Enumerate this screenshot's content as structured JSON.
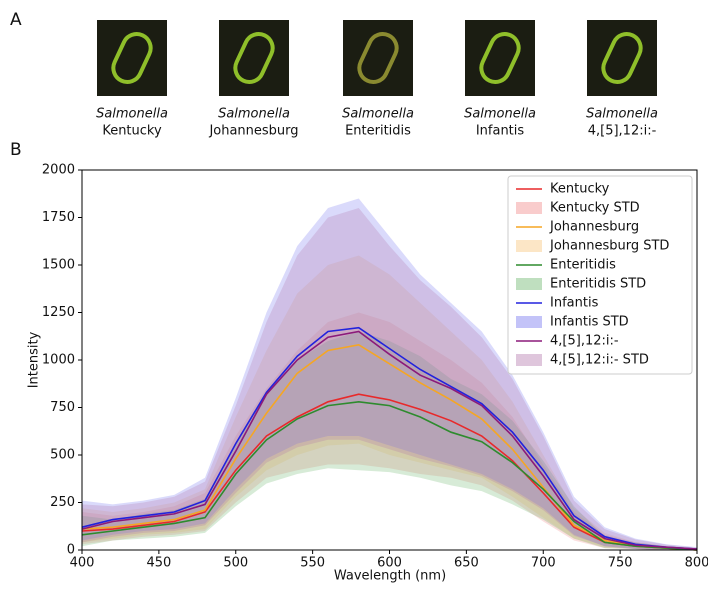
{
  "panel_a": {
    "label": "A",
    "images": [
      {
        "genus": "Salmonella",
        "serovar": "Kentucky"
      },
      {
        "genus": "Salmonella",
        "serovar": "Johannesburg"
      },
      {
        "genus": "Salmonella",
        "serovar": "Enteritidis"
      },
      {
        "genus": "Salmonella",
        "serovar": "Infantis"
      },
      {
        "genus": "Salmonella",
        "serovar": "4,[5],12:i:-"
      }
    ]
  },
  "chart_data": {
    "type": "line",
    "panel_label": "B",
    "xlabel": "Wavelength (nm)",
    "ylabel": "Intensity",
    "x": [
      400,
      420,
      440,
      460,
      480,
      500,
      520,
      540,
      560,
      580,
      600,
      620,
      640,
      660,
      680,
      700,
      720,
      740,
      760,
      780,
      800
    ],
    "xlim": [
      400,
      800
    ],
    "xticks": [
      400,
      450,
      500,
      550,
      600,
      650,
      700,
      750,
      800
    ],
    "ylim": [
      0,
      2000
    ],
    "yticks": [
      0,
      250,
      500,
      750,
      1000,
      1250,
      1500,
      1750,
      2000
    ],
    "grid": false,
    "legend": "upper right",
    "band_opacity": 0.25,
    "series": [
      {
        "name": "Kentucky",
        "color": "#e8292a",
        "values": [
          100,
          110,
          130,
          150,
          200,
          420,
          600,
          700,
          780,
          820,
          790,
          740,
          680,
          600,
          470,
          300,
          120,
          40,
          20,
          10,
          0
        ]
      },
      {
        "name": "Johannesburg",
        "color": "#f5a623",
        "values": [
          110,
          120,
          140,
          160,
          210,
          480,
          720,
          930,
          1050,
          1080,
          980,
          880,
          790,
          690,
          530,
          330,
          130,
          50,
          20,
          10,
          0
        ]
      },
      {
        "name": "Enteritidis",
        "color": "#2e8b2e",
        "values": [
          80,
          100,
          120,
          140,
          170,
          400,
          580,
          690,
          760,
          780,
          760,
          700,
          620,
          570,
          460,
          320,
          150,
          40,
          20,
          10,
          0
        ]
      },
      {
        "name": "Infantis",
        "color": "#2222dd",
        "values": [
          120,
          160,
          180,
          200,
          260,
          560,
          830,
          1020,
          1150,
          1170,
          1060,
          950,
          860,
          770,
          620,
          420,
          180,
          70,
          30,
          15,
          5
        ]
      },
      {
        "name": "4,[5],12:i:-",
        "color": "#8b1a7a",
        "values": [
          110,
          150,
          170,
          190,
          240,
          520,
          820,
          1000,
          1120,
          1150,
          1030,
          920,
          850,
          760,
          600,
          390,
          160,
          60,
          25,
          15,
          5
        ]
      }
    ],
    "bands": [
      {
        "name": "Kentucky STD",
        "color": "#f08080",
        "upper": [
          200,
          180,
          200,
          230,
          300,
          600,
          850,
          1050,
          1200,
          1250,
          1200,
          1100,
          1000,
          880,
          700,
          450,
          200,
          80,
          40,
          20,
          10
        ],
        "lower": [
          30,
          50,
          70,
          80,
          100,
          250,
          380,
          420,
          450,
          450,
          430,
          400,
          380,
          340,
          260,
          150,
          50,
          10,
          5,
          0,
          0
        ]
      },
      {
        "name": "Johannesburg STD",
        "color": "#f7c070",
        "upper": [
          220,
          200,
          220,
          250,
          320,
          700,
          1050,
          1350,
          1500,
          1550,
          1450,
          1300,
          1150,
          1000,
          780,
          500,
          220,
          90,
          40,
          20,
          10
        ],
        "lower": [
          40,
          60,
          80,
          90,
          110,
          280,
          420,
          500,
          550,
          560,
          500,
          460,
          420,
          380,
          280,
          170,
          60,
          15,
          5,
          0,
          0
        ]
      },
      {
        "name": "Enteritidis STD",
        "color": "#60b060",
        "upper": [
          180,
          160,
          190,
          210,
          270,
          560,
          820,
          1000,
          1100,
          1150,
          1100,
          1020,
          900,
          820,
          680,
          470,
          230,
          70,
          40,
          20,
          10
        ],
        "lower": [
          20,
          50,
          60,
          70,
          90,
          230,
          350,
          400,
          430,
          420,
          410,
          380,
          340,
          310,
          240,
          160,
          60,
          10,
          5,
          0,
          0
        ]
      },
      {
        "name": "Infantis STD",
        "color": "#6a6aee",
        "upper": [
          260,
          240,
          260,
          290,
          380,
          800,
          1250,
          1600,
          1800,
          1850,
          1650,
          1450,
          1300,
          1150,
          920,
          620,
          280,
          120,
          60,
          30,
          15
        ],
        "lower": [
          50,
          80,
          100,
          110,
          140,
          320,
          480,
          560,
          600,
          600,
          550,
          500,
          450,
          400,
          320,
          220,
          80,
          20,
          5,
          0,
          0
        ]
      },
      {
        "name": "4,[5],12:i:- STD",
        "color": "#b070a8",
        "upper": [
          240,
          230,
          250,
          280,
          360,
          760,
          1200,
          1550,
          1750,
          1800,
          1600,
          1420,
          1280,
          1120,
          900,
          600,
          260,
          110,
          55,
          28,
          12
        ],
        "lower": [
          40,
          70,
          90,
          100,
          130,
          300,
          460,
          540,
          580,
          580,
          530,
          480,
          440,
          390,
          310,
          210,
          75,
          20,
          5,
          0,
          0
        ]
      }
    ]
  }
}
